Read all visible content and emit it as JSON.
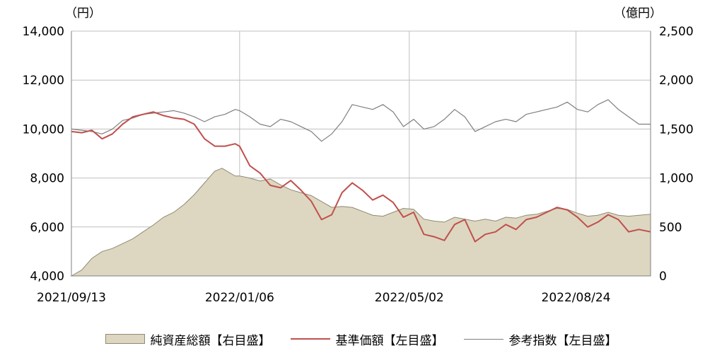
{
  "chart_data": {
    "type": "area",
    "y_left_unit": "（円）",
    "y_right_unit": "（億円）",
    "y_left_ticks": [
      "14,000",
      "12,000",
      "10,000",
      "8,000",
      "6,000",
      "4,000"
    ],
    "y_right_ticks": [
      "2,500",
      "2,000",
      "1,500",
      "1,000",
      "500",
      "0"
    ],
    "x_tick_labels": [
      "2021/09/13",
      "2022/01/06",
      "2022/05/02",
      "2022/08/24"
    ],
    "x_range": [
      "2021-09-13",
      "2022-10-14"
    ],
    "ylim_left": [
      4000,
      14000
    ],
    "ylim_right": [
      0,
      2500
    ],
    "grid": true,
    "legend_position": "bottom",
    "colors": {
      "net_assets_fill": "#ddd7c1",
      "net_assets_stroke": "#8f8a73",
      "nav": "#c0504d",
      "benchmark": "#7f7f7f"
    },
    "series": [
      {
        "name": "純資産総額【右目盛】",
        "axis": "right",
        "points": [
          [
            "2021-09-13",
            0
          ],
          [
            "2021-09-20",
            60
          ],
          [
            "2021-09-27",
            180
          ],
          [
            "2021-10-04",
            250
          ],
          [
            "2021-10-11",
            280
          ],
          [
            "2021-10-18",
            330
          ],
          [
            "2021-10-25",
            380
          ],
          [
            "2021-11-01",
            450
          ],
          [
            "2021-11-08",
            520
          ],
          [
            "2021-11-15",
            600
          ],
          [
            "2021-11-22",
            650
          ],
          [
            "2021-11-29",
            730
          ],
          [
            "2021-12-06",
            830
          ],
          [
            "2021-12-13",
            950
          ],
          [
            "2021-12-20",
            1070
          ],
          [
            "2021-12-25",
            1100
          ],
          [
            "2022-01-03",
            1020
          ],
          [
            "2022-01-06",
            1020
          ],
          [
            "2022-01-13",
            1000
          ],
          [
            "2022-01-20",
            970
          ],
          [
            "2022-01-27",
            990
          ],
          [
            "2022-02-03",
            930
          ],
          [
            "2022-02-10",
            880
          ],
          [
            "2022-02-17",
            850
          ],
          [
            "2022-02-24",
            820
          ],
          [
            "2022-03-03",
            760
          ],
          [
            "2022-03-10",
            700
          ],
          [
            "2022-03-17",
            710
          ],
          [
            "2022-03-24",
            700
          ],
          [
            "2022-03-31",
            660
          ],
          [
            "2022-04-07",
            620
          ],
          [
            "2022-04-14",
            610
          ],
          [
            "2022-04-21",
            650
          ],
          [
            "2022-04-28",
            690
          ],
          [
            "2022-05-05",
            680
          ],
          [
            "2022-05-12",
            580
          ],
          [
            "2022-05-19",
            560
          ],
          [
            "2022-05-26",
            550
          ],
          [
            "2022-06-02",
            600
          ],
          [
            "2022-06-09",
            580
          ],
          [
            "2022-06-16",
            560
          ],
          [
            "2022-06-23",
            580
          ],
          [
            "2022-06-30",
            560
          ],
          [
            "2022-07-07",
            600
          ],
          [
            "2022-07-14",
            590
          ],
          [
            "2022-07-21",
            620
          ],
          [
            "2022-07-28",
            630
          ],
          [
            "2022-08-04",
            660
          ],
          [
            "2022-08-11",
            690
          ],
          [
            "2022-08-18",
            680
          ],
          [
            "2022-08-25",
            640
          ],
          [
            "2022-09-01",
            610
          ],
          [
            "2022-09-08",
            620
          ],
          [
            "2022-09-15",
            650
          ],
          [
            "2022-09-22",
            620
          ],
          [
            "2022-09-29",
            610
          ],
          [
            "2022-10-06",
            620
          ],
          [
            "2022-10-14",
            630
          ]
        ]
      },
      {
        "name": "基準価額【左目盛】",
        "axis": "left",
        "points": [
          [
            "2021-09-13",
            9900
          ],
          [
            "2021-09-20",
            9850
          ],
          [
            "2021-09-27",
            9950
          ],
          [
            "2021-10-04",
            9600
          ],
          [
            "2021-10-11",
            9800
          ],
          [
            "2021-10-18",
            10200
          ],
          [
            "2021-10-25",
            10500
          ],
          [
            "2021-11-01",
            10600
          ],
          [
            "2021-11-08",
            10700
          ],
          [
            "2021-11-15",
            10550
          ],
          [
            "2021-11-22",
            10450
          ],
          [
            "2021-11-29",
            10400
          ],
          [
            "2021-12-06",
            10200
          ],
          [
            "2021-12-13",
            9600
          ],
          [
            "2021-12-20",
            9300
          ],
          [
            "2021-12-27",
            9300
          ],
          [
            "2022-01-03",
            9400
          ],
          [
            "2022-01-06",
            9300
          ],
          [
            "2022-01-13",
            8500
          ],
          [
            "2022-01-20",
            8200
          ],
          [
            "2022-01-27",
            7700
          ],
          [
            "2022-02-03",
            7600
          ],
          [
            "2022-02-10",
            7900
          ],
          [
            "2022-02-17",
            7500
          ],
          [
            "2022-02-24",
            7050
          ],
          [
            "2022-03-03",
            6300
          ],
          [
            "2022-03-10",
            6500
          ],
          [
            "2022-03-17",
            7400
          ],
          [
            "2022-03-24",
            7800
          ],
          [
            "2022-03-31",
            7500
          ],
          [
            "2022-04-07",
            7100
          ],
          [
            "2022-04-14",
            7300
          ],
          [
            "2022-04-21",
            7000
          ],
          [
            "2022-04-28",
            6400
          ],
          [
            "2022-05-05",
            6600
          ],
          [
            "2022-05-12",
            5700
          ],
          [
            "2022-05-19",
            5600
          ],
          [
            "2022-05-26",
            5450
          ],
          [
            "2022-06-02",
            6100
          ],
          [
            "2022-06-09",
            6300
          ],
          [
            "2022-06-16",
            5400
          ],
          [
            "2022-06-23",
            5700
          ],
          [
            "2022-06-30",
            5800
          ],
          [
            "2022-07-07",
            6100
          ],
          [
            "2022-07-14",
            5900
          ],
          [
            "2022-07-21",
            6300
          ],
          [
            "2022-07-28",
            6400
          ],
          [
            "2022-08-04",
            6600
          ],
          [
            "2022-08-11",
            6800
          ],
          [
            "2022-08-18",
            6700
          ],
          [
            "2022-08-25",
            6400
          ],
          [
            "2022-09-01",
            6000
          ],
          [
            "2022-09-08",
            6200
          ],
          [
            "2022-09-15",
            6500
          ],
          [
            "2022-09-22",
            6300
          ],
          [
            "2022-09-29",
            5800
          ],
          [
            "2022-10-06",
            5900
          ],
          [
            "2022-10-14",
            5800
          ]
        ]
      },
      {
        "name": "参考指数【左目盛】",
        "axis": "left",
        "points": [
          [
            "2021-09-13",
            10000
          ],
          [
            "2021-09-20",
            9950
          ],
          [
            "2021-09-27",
            9900
          ],
          [
            "2021-10-04",
            9800
          ],
          [
            "2021-10-11",
            10000
          ],
          [
            "2021-10-18",
            10350
          ],
          [
            "2021-10-25",
            10450
          ],
          [
            "2021-11-01",
            10600
          ],
          [
            "2021-11-08",
            10650
          ],
          [
            "2021-11-15",
            10700
          ],
          [
            "2021-11-22",
            10750
          ],
          [
            "2021-11-29",
            10650
          ],
          [
            "2021-12-06",
            10500
          ],
          [
            "2021-12-13",
            10300
          ],
          [
            "2021-12-20",
            10500
          ],
          [
            "2021-12-27",
            10600
          ],
          [
            "2022-01-03",
            10800
          ],
          [
            "2022-01-06",
            10750
          ],
          [
            "2022-01-13",
            10500
          ],
          [
            "2022-01-20",
            10200
          ],
          [
            "2022-01-27",
            10100
          ],
          [
            "2022-02-03",
            10400
          ],
          [
            "2022-02-10",
            10300
          ],
          [
            "2022-02-17",
            10100
          ],
          [
            "2022-02-24",
            9900
          ],
          [
            "2022-03-03",
            9500
          ],
          [
            "2022-03-10",
            9800
          ],
          [
            "2022-03-17",
            10300
          ],
          [
            "2022-03-24",
            11000
          ],
          [
            "2022-03-31",
            10900
          ],
          [
            "2022-04-07",
            10800
          ],
          [
            "2022-04-14",
            11000
          ],
          [
            "2022-04-21",
            10700
          ],
          [
            "2022-04-28",
            10100
          ],
          [
            "2022-05-05",
            10400
          ],
          [
            "2022-05-12",
            10000
          ],
          [
            "2022-05-19",
            10100
          ],
          [
            "2022-05-26",
            10400
          ],
          [
            "2022-06-02",
            10800
          ],
          [
            "2022-06-09",
            10500
          ],
          [
            "2022-06-16",
            9900
          ],
          [
            "2022-06-23",
            10100
          ],
          [
            "2022-06-30",
            10300
          ],
          [
            "2022-07-07",
            10400
          ],
          [
            "2022-07-14",
            10300
          ],
          [
            "2022-07-21",
            10600
          ],
          [
            "2022-07-28",
            10700
          ],
          [
            "2022-08-04",
            10800
          ],
          [
            "2022-08-11",
            10900
          ],
          [
            "2022-08-18",
            11100
          ],
          [
            "2022-08-25",
            10800
          ],
          [
            "2022-09-01",
            10700
          ],
          [
            "2022-09-08",
            11000
          ],
          [
            "2022-09-15",
            11200
          ],
          [
            "2022-09-22",
            10800
          ],
          [
            "2022-09-29",
            10500
          ],
          [
            "2022-10-06",
            10200
          ],
          [
            "2022-10-14",
            10200
          ]
        ]
      }
    ]
  }
}
